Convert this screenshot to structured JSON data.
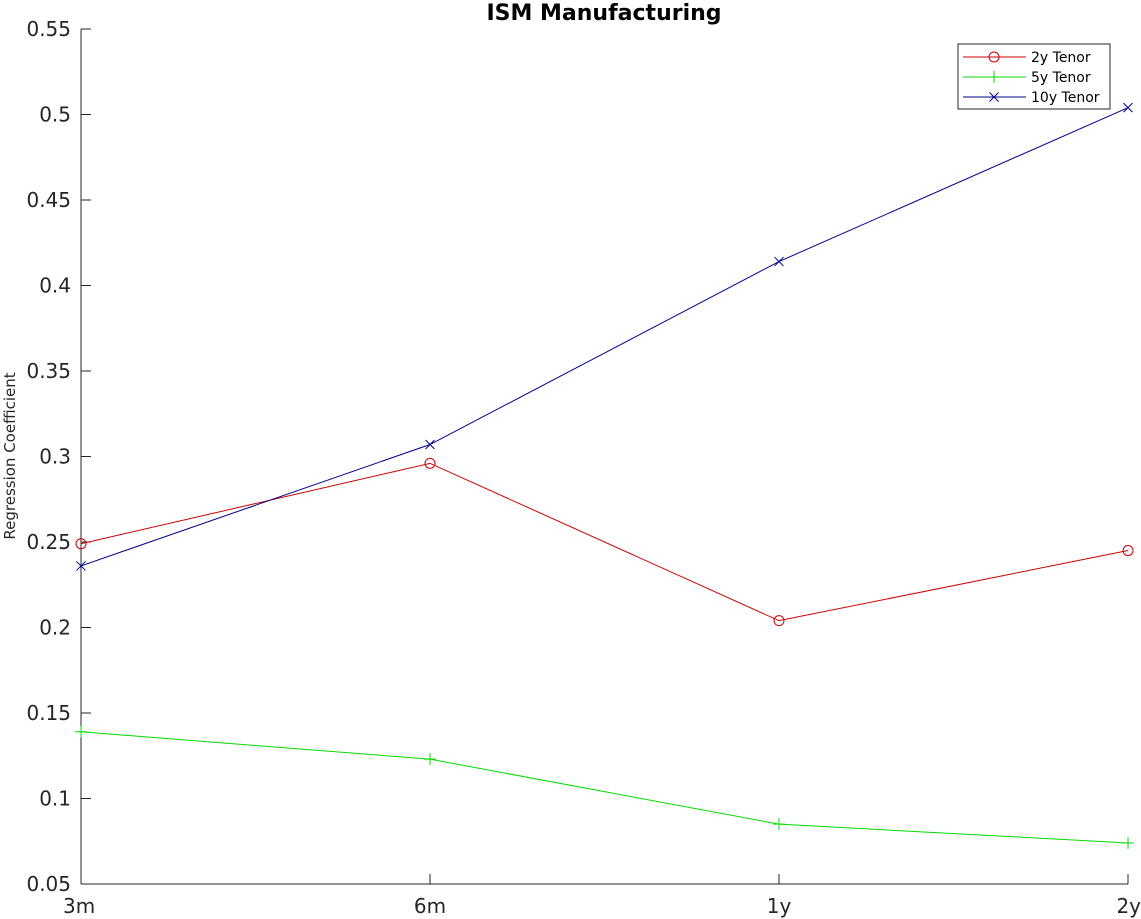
{
  "chart_data": {
    "type": "line",
    "title": "ISM Manufacturing",
    "xlabel": "",
    "ylabel": "Regression Coefficient",
    "categories": [
      "3m",
      "6m",
      "1y",
      "2y"
    ],
    "ylim": [
      0.05,
      0.55
    ],
    "yticks": [
      0.05,
      0.1,
      0.15,
      0.2,
      0.25,
      0.3,
      0.35,
      0.4,
      0.45,
      0.5,
      0.55
    ],
    "ytick_labels": [
      "0.05",
      "0.1",
      "0.15",
      "0.2",
      "0.25",
      "0.3",
      "0.35",
      "0.4",
      "0.45",
      "0.5",
      "0.55"
    ],
    "grid": false,
    "legend_position": "top-right",
    "series": [
      {
        "name": "2y Tenor",
        "color": "#cc0000",
        "marker": "circle",
        "values": [
          0.249,
          0.296,
          0.204,
          0.245
        ]
      },
      {
        "name": "5y Tenor",
        "color": "#00dd00",
        "marker": "plus",
        "values": [
          0.139,
          0.123,
          0.085,
          0.074
        ]
      },
      {
        "name": "10y Tenor",
        "color": "#00008b",
        "marker": "x",
        "values": [
          0.236,
          0.307,
          0.414,
          0.504
        ]
      }
    ]
  }
}
